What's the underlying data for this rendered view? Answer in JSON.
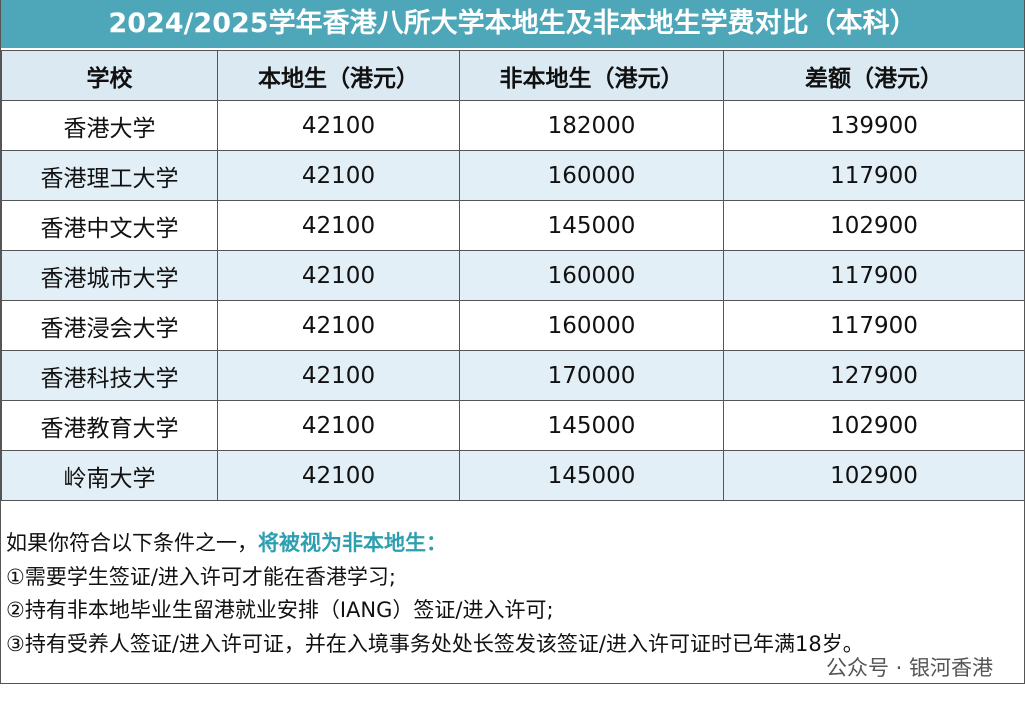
{
  "title": "2024/2025学年香港八所大学本地生及非本地生学费对比（本科）",
  "table": {
    "header": [
      "学校",
      "本地生（港元）",
      "非本地生（港元）",
      "差额（港元）"
    ],
    "rows": [
      [
        "香港大学",
        42100,
        182000,
        139900
      ],
      [
        "香港理工大学",
        42100,
        160000,
        117900
      ],
      [
        "香港中文大学",
        42100,
        145000,
        102900
      ],
      [
        "香港城市大学",
        42100,
        160000,
        117900
      ],
      [
        "香港浸会大学",
        42100,
        160000,
        117900
      ],
      [
        "香港科技大学",
        42100,
        170000,
        127900
      ],
      [
        "香港教育大学",
        42100,
        145000,
        102900
      ],
      [
        "岭南大学",
        42100,
        145000,
        102900
      ]
    ]
  },
  "notes": {
    "intro": "如果你符合以下条件之一，",
    "highlight": "将被视为非本地生：",
    "items": [
      "①需要学生签证/进入许可才能在香港学习;",
      "②持有非本地毕业生留港就业安排（IANG）签证/进入许可;",
      "③持有受养人签证/进入许可证，并在入境事务处处长签发该签证/进入许可证时已年满18岁。"
    ]
  },
  "footer": "公众号 · 银河香港"
}
